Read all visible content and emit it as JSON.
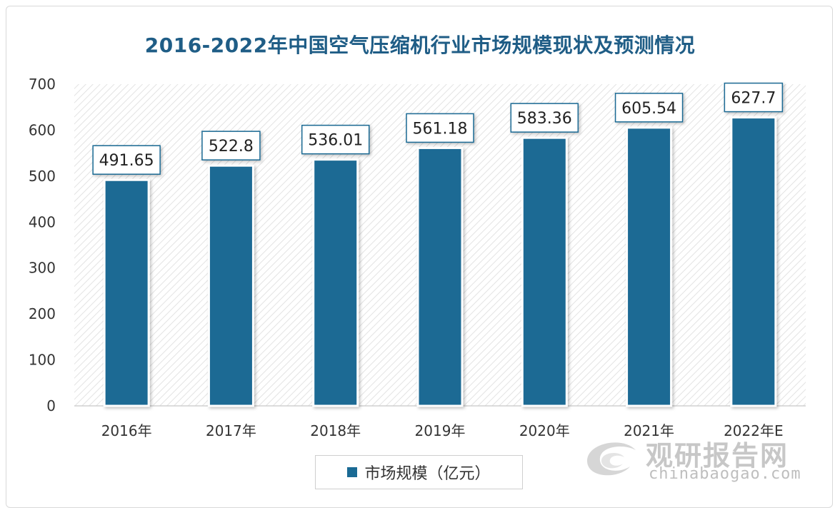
{
  "chart_data": {
    "type": "bar",
    "title": "2016-2022年中国空气压缩机行业市场规模现状及预测情况",
    "categories": [
      "2016年",
      "2017年",
      "2018年",
      "2019年",
      "2020年",
      "2021年",
      "2022年E"
    ],
    "series": [
      {
        "name": "市场规模（亿元）",
        "values": [
          491.65,
          522.8,
          536.01,
          561.18,
          583.36,
          605.54,
          627.7
        ],
        "labels": [
          "491.65",
          "522.8",
          "536.01",
          "561.18",
          "583.36",
          "605.54",
          "627.7"
        ]
      }
    ],
    "ylim": [
      0,
      700
    ],
    "yticks": [
      "0",
      "100",
      "200",
      "300",
      "400",
      "500",
      "600",
      "700"
    ],
    "xlabel": "",
    "ylabel": "",
    "legend_position": "bottom",
    "grid": false,
    "colors": {
      "bar": "#1a6a94",
      "title": "#1f5d86",
      "plot_hatch": "#e3e3e3"
    }
  },
  "watermark": {
    "brand_cn": "观研报告网",
    "brand_en": "chinabaogao.com",
    "icon": "swirl-logo-icon"
  }
}
